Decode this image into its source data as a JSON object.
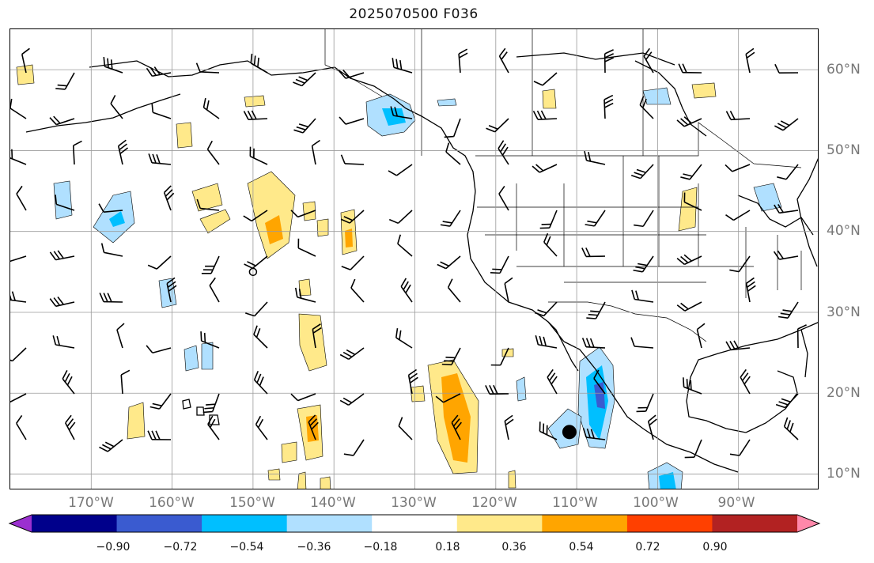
{
  "title": "2025070500 F036",
  "lon_labels": [
    "170°W",
    "160°W",
    "150°W",
    "140°W",
    "130°W",
    "120°W",
    "110°W",
    "100°W",
    "90°W"
  ],
  "lat_labels": [
    "60°N",
    "50°N",
    "40°N",
    "30°N",
    "20°N",
    "10°N"
  ],
  "colorbar": {
    "ticks": [
      "−0.90",
      "−0.72",
      "−0.54",
      "−0.36",
      "−0.18",
      "0.18",
      "0.36",
      "0.54",
      "0.72",
      "0.90"
    ],
    "colors": [
      "#9b30d0",
      "#00008b",
      "#3a5bd0",
      "#00bfff",
      "#b0e0ff",
      "#ffffff",
      "#ffe98a",
      "#ffa500",
      "#ff4000",
      "#b22222",
      "#ff88aa"
    ]
  },
  "map": {
    "extent": {
      "lon_min": -180,
      "lon_max": -80,
      "lat_min": 8,
      "lat_max": 65
    },
    "storm_marker": {
      "lon": -110.9,
      "lat": 15.2,
      "symbol": "filled-circle"
    },
    "open_marker": {
      "lon": -150,
      "lat": 35,
      "symbol": "open-circle"
    }
  }
}
